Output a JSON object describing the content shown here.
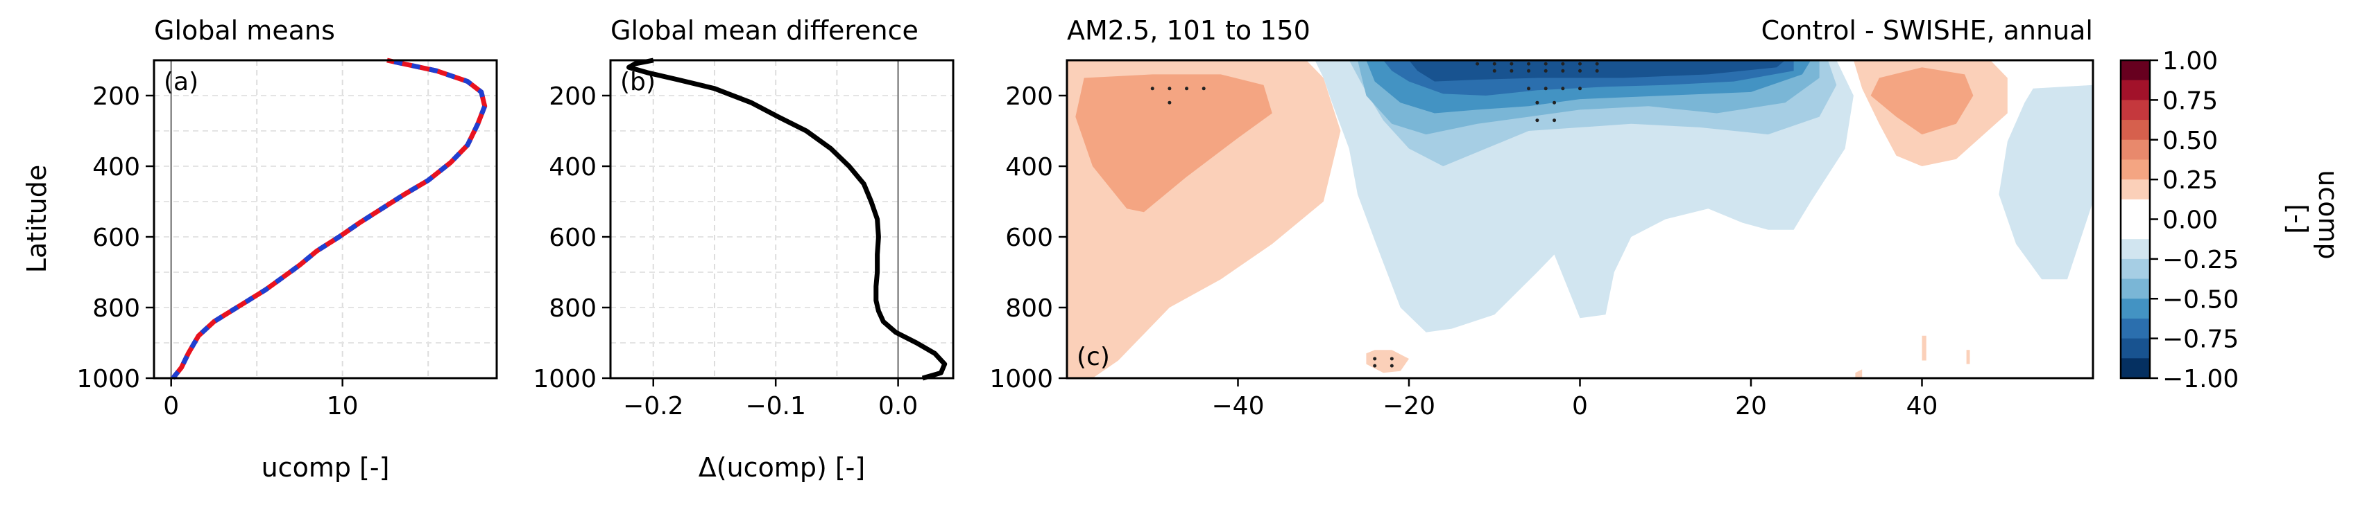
{
  "chart_data": [
    {
      "type": "line",
      "panel_label": "(a)",
      "title": "Global means",
      "xlabel": "ucomp [-]",
      "ylabel": "Latitude",
      "xlim": [
        -1,
        19
      ],
      "ylim": [
        1000,
        100
      ],
      "grid": true,
      "xticks": [
        0,
        10
      ],
      "yticks": [
        200,
        400,
        600,
        800,
        1000
      ],
      "series": [
        {
          "color": "#e8121f",
          "style": "solid",
          "x": [
            0.1,
            0.6,
            1.0,
            1.6,
            2.5,
            3.5,
            4.5,
            5.5,
            6.5,
            7.5,
            8.5,
            9.8,
            11.0,
            12.3,
            13.6,
            15.0,
            16.3,
            17.3,
            17.9,
            18.3,
            18.1,
            17.3,
            15.5,
            12.6
          ],
          "y": [
            1000,
            970,
            930,
            880,
            840,
            810,
            780,
            750,
            715,
            680,
            640,
            600,
            560,
            520,
            480,
            440,
            390,
            340,
            280,
            230,
            190,
            160,
            130,
            100
          ]
        },
        {
          "color": "#1f3fd1",
          "style": "dashed",
          "x": [
            0.1,
            0.6,
            1.0,
            1.6,
            2.5,
            3.5,
            4.5,
            5.5,
            6.5,
            7.5,
            8.5,
            9.8,
            11.0,
            12.3,
            13.6,
            15.0,
            16.3,
            17.3,
            17.9,
            18.3,
            18.1,
            17.3,
            15.5,
            12.6
          ],
          "y": [
            1000,
            970,
            930,
            880,
            840,
            810,
            780,
            750,
            715,
            680,
            640,
            600,
            560,
            520,
            480,
            440,
            390,
            340,
            280,
            230,
            190,
            160,
            130,
            100
          ]
        }
      ]
    },
    {
      "type": "line",
      "panel_label": "(b)",
      "title": "Global mean difference",
      "xlabel": "Δ(ucomp) [-]",
      "ylabel": "",
      "xlim": [
        -0.235,
        0.045
      ],
      "ylim": [
        1000,
        100
      ],
      "grid": true,
      "xticks": [
        -0.2,
        -0.1,
        0.0
      ],
      "xtick_labels": [
        "−0.2",
        "−0.1",
        "0.0"
      ],
      "yticks": [
        200,
        400,
        600,
        800,
        1000
      ],
      "series": [
        {
          "color": "#000000",
          "style": "solid",
          "x": [
            0.02,
            0.035,
            0.038,
            0.03,
            0.015,
            -0.002,
            -0.012,
            -0.016,
            -0.018,
            -0.018,
            -0.017,
            -0.017,
            -0.016,
            -0.017,
            -0.022,
            -0.028,
            -0.04,
            -0.055,
            -0.075,
            -0.098,
            -0.12,
            -0.15,
            -0.18,
            -0.205,
            -0.22,
            -0.215,
            -0.2
          ],
          "y": [
            1000,
            985,
            960,
            930,
            900,
            870,
            840,
            810,
            780,
            740,
            700,
            650,
            600,
            550,
            500,
            450,
            400,
            350,
            300,
            260,
            220,
            180,
            155,
            135,
            120,
            110,
            100
          ]
        }
      ]
    },
    {
      "type": "heatmap",
      "panel_label": "(c)",
      "title": "AM2.5, 101 to 150",
      "title_right": "Control - SWISHE, annual",
      "xlabel": "",
      "ylabel": "",
      "xlim": [
        -60,
        60
      ],
      "ylim": [
        1000,
        100
      ],
      "xticks": [
        -40,
        -20,
        0,
        20,
        40
      ],
      "xtick_labels": [
        "−40",
        "−20",
        "0",
        "20",
        "40"
      ],
      "yticks": [
        200,
        400,
        600,
        800,
        1000
      ],
      "colorbar": {
        "label": "ucomp\n[-]",
        "ticks": [
          1.0,
          0.75,
          0.5,
          0.25,
          0.0,
          -0.25,
          -0.5,
          -0.75,
          -1.0
        ],
        "tick_labels": [
          "1.00",
          "0.75",
          "0.50",
          "0.25",
          "0.00",
          "−0.25",
          "−0.50",
          "−0.75",
          "−1.00"
        ],
        "levels": [
          {
            "from": 0.875,
            "to": 1.0,
            "color": "#67001f"
          },
          {
            "from": 0.75,
            "to": 0.875,
            "color": "#a2122a"
          },
          {
            "from": 0.625,
            "to": 0.75,
            "color": "#c5383d"
          },
          {
            "from": 0.5,
            "to": 0.625,
            "color": "#d6604d"
          },
          {
            "from": 0.375,
            "to": 0.5,
            "color": "#e8896c"
          },
          {
            "from": 0.25,
            "to": 0.375,
            "color": "#f4a582"
          },
          {
            "from": 0.125,
            "to": 0.25,
            "color": "#fbd0b9"
          },
          {
            "from": -0.125,
            "to": 0.125,
            "color": "#ffffff"
          },
          {
            "from": -0.25,
            "to": -0.125,
            "color": "#d1e5f0"
          },
          {
            "from": -0.375,
            "to": -0.25,
            "color": "#a6cee4"
          },
          {
            "from": -0.5,
            "to": -0.375,
            "color": "#7ab6d6"
          },
          {
            "from": -0.625,
            "to": -0.5,
            "color": "#4393c3"
          },
          {
            "from": -0.75,
            "to": -0.625,
            "color": "#2b6fae"
          },
          {
            "from": -0.875,
            "to": -0.75,
            "color": "#185390"
          },
          {
            "from": -1.0,
            "to": -0.875,
            "color": "#053061"
          }
        ]
      },
      "regions": [
        {
          "value": 0.15,
          "x": [
            -60,
            -56,
            -52,
            -46,
            -40,
            -32,
            -30,
            -28,
            -30,
            -36,
            -42,
            -48,
            -52,
            -54,
            -57,
            -60
          ],
          "y": [
            100,
            100,
            100,
            100,
            100,
            100,
            150,
            300,
            500,
            620,
            720,
            800,
            900,
            950,
            1000,
            1000
          ]
        },
        {
          "value": 0.3,
          "x": [
            -58,
            -50,
            -42,
            -37,
            -36,
            -40,
            -46,
            -51,
            -53,
            -57,
            -59
          ],
          "y": [
            150,
            140,
            140,
            170,
            250,
            320,
            430,
            530,
            520,
            400,
            260
          ]
        },
        {
          "value": 0.15,
          "x": [
            -25,
            -24,
            -22,
            -20,
            -21,
            -23,
            -25
          ],
          "y": [
            930,
            920,
            920,
            945,
            980,
            985,
            960
          ]
        },
        {
          "value": -0.15,
          "x": [
            -31,
            -20,
            0,
            20,
            30,
            32,
            31,
            27,
            25,
            22,
            19,
            15,
            10,
            6,
            4,
            3,
            0,
            -3,
            -5,
            -10,
            -15,
            -18,
            -21,
            -24,
            -26,
            -27,
            -29,
            -30
          ],
          "y": [
            100,
            100,
            100,
            100,
            100,
            200,
            350,
            500,
            580,
            580,
            560,
            520,
            550,
            600,
            700,
            820,
            830,
            650,
            700,
            820,
            860,
            870,
            800,
            610,
            480,
            350,
            220,
            150
          ]
        },
        {
          "value": -0.3,
          "x": [
            -27,
            -20,
            0,
            20,
            29,
            30,
            28,
            22,
            14,
            6,
            0,
            -6,
            -10,
            -16,
            -20,
            -23,
            -25
          ],
          "y": [
            100,
            100,
            100,
            100,
            100,
            170,
            260,
            310,
            290,
            280,
            290,
            300,
            340,
            400,
            350,
            270,
            190
          ]
        },
        {
          "value": -0.45,
          "x": [
            -26,
            -20,
            0,
            20,
            28,
            28,
            24,
            16,
            8,
            0,
            -6,
            -12,
            -18,
            -22,
            -25
          ],
          "y": [
            100,
            100,
            100,
            100,
            100,
            150,
            220,
            250,
            230,
            240,
            260,
            280,
            310,
            280,
            200
          ]
        },
        {
          "value": -0.55,
          "x": [
            -25,
            -20,
            0,
            20,
            27,
            26,
            20,
            10,
            0,
            -6,
            -12,
            -17,
            -21,
            -24
          ],
          "y": [
            100,
            100,
            100,
            100,
            100,
            140,
            190,
            200,
            210,
            230,
            240,
            250,
            220,
            160
          ]
        },
        {
          "value": -0.7,
          "x": [
            -23,
            -15,
            -5,
            5,
            15,
            25,
            25,
            18,
            10,
            3,
            -5,
            -11,
            -16,
            -20,
            -22
          ],
          "y": [
            100,
            100,
            100,
            100,
            100,
            100,
            130,
            160,
            170,
            175,
            185,
            200,
            195,
            160,
            130
          ]
        },
        {
          "value": -0.8,
          "x": [
            -20,
            -12,
            -2,
            5,
            15,
            24,
            23,
            15,
            5,
            -5,
            -12,
            -17,
            -19
          ],
          "y": [
            100,
            100,
            100,
            100,
            100,
            100,
            120,
            140,
            150,
            150,
            155,
            160,
            130
          ]
        },
        {
          "value": 0.15,
          "x": [
            32,
            40,
            48,
            50,
            50,
            44,
            40,
            37,
            35,
            33
          ],
          "y": [
            100,
            100,
            100,
            150,
            250,
            380,
            400,
            370,
            280,
            180
          ]
        },
        {
          "value": 0.3,
          "x": [
            35,
            40,
            45,
            46,
            44,
            40,
            37,
            34
          ],
          "y": [
            150,
            120,
            140,
            200,
            280,
            310,
            260,
            200
          ]
        },
        {
          "value": -0.15,
          "x": [
            53,
            60,
            60,
            57,
            54,
            51,
            49,
            50,
            52
          ],
          "y": [
            180,
            170,
            500,
            720,
            720,
            620,
            480,
            330,
            220
          ]
        },
        {
          "value": 0.15,
          "x": [
            32.2,
            33,
            33,
            32.2
          ],
          "y": [
            985,
            975,
            1000,
            1000
          ]
        },
        {
          "value": 0.15,
          "x": [
            40,
            40.5,
            40.5,
            40
          ],
          "y": [
            880,
            880,
            950,
            950
          ]
        },
        {
          "value": 0.15,
          "x": [
            45.2,
            45.6,
            45.6,
            45.2
          ],
          "y": [
            920,
            920,
            960,
            960
          ]
        }
      ],
      "stipple": [
        [
          -50,
          180
        ],
        [
          -48,
          180
        ],
        [
          -46,
          180
        ],
        [
          -44,
          180
        ],
        [
          -48,
          220
        ],
        [
          -12,
          110
        ],
        [
          -10,
          110
        ],
        [
          -8,
          110
        ],
        [
          -6,
          110
        ],
        [
          -4,
          110
        ],
        [
          -2,
          110
        ],
        [
          0,
          110
        ],
        [
          2,
          110
        ],
        [
          -10,
          130
        ],
        [
          -8,
          130
        ],
        [
          -6,
          130
        ],
        [
          -4,
          130
        ],
        [
          -2,
          130
        ],
        [
          0,
          130
        ],
        [
          2,
          130
        ],
        [
          -6,
          180
        ],
        [
          -4,
          180
        ],
        [
          -2,
          180
        ],
        [
          0,
          180
        ],
        [
          -5,
          220
        ],
        [
          -3,
          220
        ],
        [
          -5,
          270
        ],
        [
          -3,
          270
        ],
        [
          -24,
          945
        ],
        [
          -22,
          945
        ],
        [
          -24,
          965
        ],
        [
          -22,
          965
        ]
      ]
    }
  ]
}
